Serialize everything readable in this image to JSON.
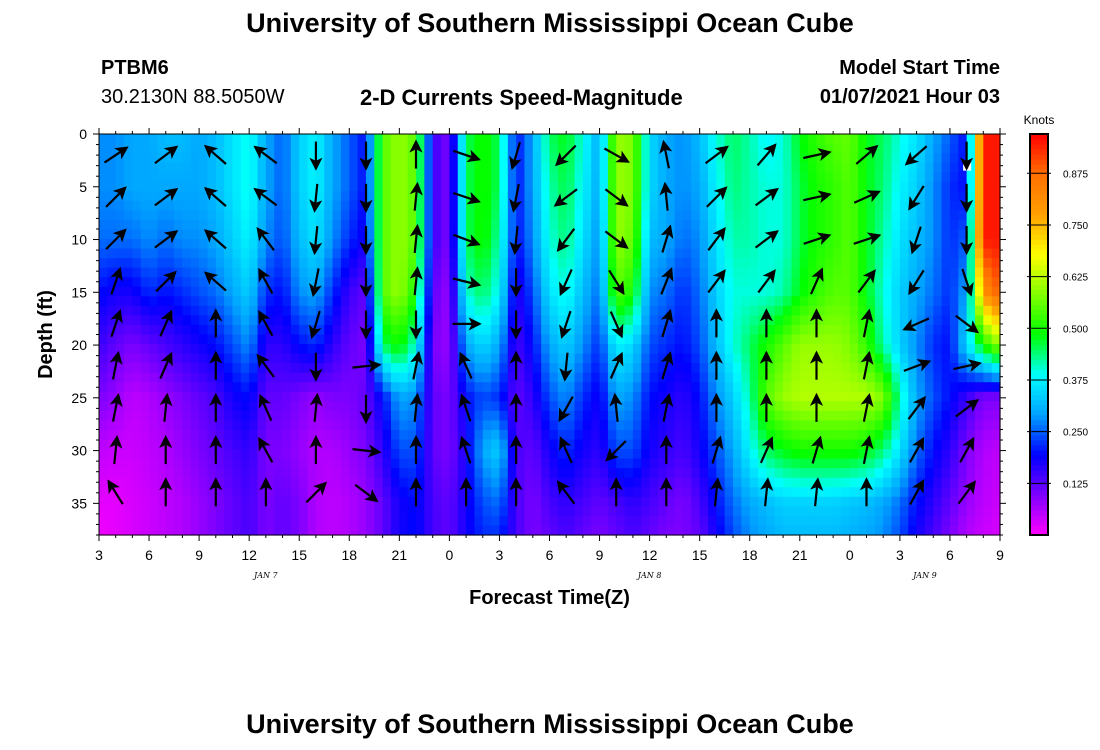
{
  "header": {
    "title": "University of Southern Mississippi Ocean Cube",
    "station": "PTBM6",
    "coords": "30.2130N 88.5050W",
    "subtitle": "2-D Currents Speed-Magnitude",
    "model_start_label": "Model Start Time",
    "model_start_value": "01/07/2021 Hour 03"
  },
  "footer": {
    "title": "University of Southern Mississippi Ocean Cube"
  },
  "chart_data": {
    "type": "heatmap",
    "title": "2-D Currents Speed-Magnitude",
    "xlabel": "Forecast Time(Z)",
    "ylabel": "Depth (ft)",
    "x_ticks": [
      "3",
      "6",
      "9",
      "12",
      "15",
      "18",
      "21",
      "0",
      "3",
      "6",
      "9",
      "12",
      "15",
      "18",
      "21",
      "0",
      "3",
      "6",
      "9"
    ],
    "x_hours": [
      0,
      3,
      6,
      9,
      12,
      15,
      18,
      21,
      24,
      27,
      30,
      33,
      36,
      39,
      42,
      45,
      48,
      51,
      54
    ],
    "date_labels": [
      {
        "label": "JAN 7",
        "hour": 10
      },
      {
        "label": "JAN 8",
        "hour": 33
      },
      {
        "label": "JAN 9",
        "hour": 49.5
      }
    ],
    "y_ticks": [
      "0",
      "5",
      "10",
      "15",
      "20",
      "25",
      "30",
      "35"
    ],
    "y_values": [
      0,
      5,
      10,
      15,
      20,
      25,
      30,
      35
    ],
    "ylim": [
      0,
      38
    ],
    "xlim": [
      0,
      54
    ],
    "colorbar": {
      "title": "Knots",
      "ticks": [
        "0.125",
        "0.250",
        "0.375",
        "0.500",
        "0.625",
        "0.750",
        "0.875"
      ],
      "tick_values": [
        0.125,
        0.25,
        0.375,
        0.5,
        0.625,
        0.75,
        0.875
      ],
      "range": [
        0,
        0.97
      ]
    },
    "colors": {
      "c0": "#ff00ff",
      "c1": "#8000ff",
      "c2": "#0000ff",
      "c3": "#00a0ff",
      "c4": "#00ffff",
      "c5": "#00ff00",
      "c6": "#80ff00",
      "c7": "#ffff00",
      "c8": "#ffa000",
      "c9": "#ff7000",
      "c10": "#ff0000"
    },
    "speed_grid": {
      "depths": [
        0,
        5,
        10,
        15,
        20,
        25,
        30,
        35,
        38
      ],
      "hours": [
        0,
        1,
        2,
        3,
        4,
        5,
        6,
        7,
        8,
        9,
        10,
        11,
        12,
        13,
        14,
        15,
        16,
        17,
        18,
        19,
        20,
        21,
        22,
        23,
        24,
        25,
        26,
        27,
        28,
        29,
        30,
        31,
        32,
        33,
        34,
        35,
        36,
        37,
        38,
        39,
        40,
        41,
        42,
        43,
        44,
        45,
        46,
        47,
        48,
        49,
        50,
        51,
        52,
        53,
        54
      ],
      "values": [
        [
          0.28,
          0.28,
          0.3,
          0.3,
          0.32,
          0.32,
          0.3,
          0.32,
          0.36,
          0.4,
          0.3,
          0.25,
          0.34,
          0.38,
          0.3,
          0.25,
          0.2,
          0.55,
          0.6,
          0.55,
          0.15,
          0.1,
          0.45,
          0.5,
          0.45,
          0.2,
          0.3,
          0.45,
          0.48,
          0.4,
          0.3,
          0.6,
          0.58,
          0.35,
          0.3,
          0.28,
          0.32,
          0.4,
          0.45,
          0.42,
          0.38,
          0.4,
          0.48,
          0.52,
          0.55,
          0.56,
          0.48,
          0.45,
          0.4,
          0.36,
          0.3,
          0.25,
          0.2,
          0.95,
          0.95
        ],
        [
          0.28,
          0.28,
          0.3,
          0.3,
          0.3,
          0.3,
          0.3,
          0.32,
          0.36,
          0.4,
          0.3,
          0.25,
          0.34,
          0.38,
          0.3,
          0.25,
          0.2,
          0.55,
          0.6,
          0.55,
          0.15,
          0.1,
          0.45,
          0.5,
          0.45,
          0.2,
          0.3,
          0.42,
          0.46,
          0.38,
          0.3,
          0.6,
          0.58,
          0.35,
          0.3,
          0.28,
          0.3,
          0.38,
          0.44,
          0.42,
          0.4,
          0.4,
          0.46,
          0.5,
          0.52,
          0.55,
          0.48,
          0.44,
          0.38,
          0.34,
          0.28,
          0.22,
          0.2,
          0.95,
          0.95
        ],
        [
          0.26,
          0.26,
          0.26,
          0.28,
          0.26,
          0.28,
          0.28,
          0.3,
          0.34,
          0.38,
          0.28,
          0.24,
          0.32,
          0.36,
          0.28,
          0.22,
          0.18,
          0.55,
          0.6,
          0.55,
          0.15,
          0.1,
          0.45,
          0.5,
          0.42,
          0.2,
          0.28,
          0.4,
          0.44,
          0.36,
          0.28,
          0.6,
          0.56,
          0.32,
          0.3,
          0.26,
          0.28,
          0.36,
          0.42,
          0.42,
          0.4,
          0.4,
          0.46,
          0.5,
          0.52,
          0.55,
          0.48,
          0.42,
          0.36,
          0.32,
          0.28,
          0.22,
          0.25,
          0.95,
          0.95
        ],
        [
          0.2,
          0.18,
          0.18,
          0.22,
          0.2,
          0.22,
          0.24,
          0.26,
          0.3,
          0.34,
          0.22,
          0.2,
          0.28,
          0.3,
          0.22,
          0.15,
          0.12,
          0.55,
          0.6,
          0.5,
          0.12,
          0.08,
          0.4,
          0.45,
          0.38,
          0.16,
          0.24,
          0.36,
          0.4,
          0.32,
          0.26,
          0.55,
          0.5,
          0.28,
          0.26,
          0.22,
          0.26,
          0.34,
          0.4,
          0.4,
          0.4,
          0.42,
          0.48,
          0.52,
          0.55,
          0.55,
          0.48,
          0.4,
          0.34,
          0.3,
          0.26,
          0.22,
          0.3,
          0.8,
          0.9
        ],
        [
          0.15,
          0.12,
          0.1,
          0.12,
          0.14,
          0.16,
          0.18,
          0.2,
          0.24,
          0.28,
          0.16,
          0.16,
          0.2,
          0.22,
          0.16,
          0.12,
          0.1,
          0.45,
          0.5,
          0.4,
          0.1,
          0.08,
          0.3,
          0.35,
          0.3,
          0.14,
          0.2,
          0.3,
          0.34,
          0.28,
          0.22,
          0.38,
          0.35,
          0.24,
          0.22,
          0.2,
          0.24,
          0.32,
          0.4,
          0.45,
          0.5,
          0.55,
          0.6,
          0.6,
          0.6,
          0.58,
          0.52,
          0.42,
          0.34,
          0.28,
          0.22,
          0.2,
          0.35,
          0.5,
          0.6
        ],
        [
          0.1,
          0.08,
          0.05,
          0.06,
          0.08,
          0.1,
          0.12,
          0.14,
          0.18,
          0.2,
          0.12,
          0.12,
          0.1,
          0.08,
          0.1,
          0.1,
          0.12,
          0.2,
          0.3,
          0.28,
          0.12,
          0.1,
          0.2,
          0.24,
          0.22,
          0.12,
          0.16,
          0.24,
          0.28,
          0.22,
          0.18,
          0.3,
          0.28,
          0.2,
          0.18,
          0.16,
          0.2,
          0.28,
          0.34,
          0.42,
          0.55,
          0.6,
          0.62,
          0.62,
          0.62,
          0.62,
          0.62,
          0.58,
          0.42,
          0.3,
          0.24,
          0.2,
          0.15,
          0.1,
          0.1
        ],
        [
          0.05,
          0.04,
          0.04,
          0.05,
          0.06,
          0.08,
          0.1,
          0.12,
          0.14,
          0.16,
          0.1,
          0.1,
          0.08,
          0.06,
          0.06,
          0.08,
          0.1,
          0.16,
          0.24,
          0.24,
          0.12,
          0.1,
          0.18,
          0.3,
          0.34,
          0.14,
          0.12,
          0.18,
          0.22,
          0.18,
          0.16,
          0.24,
          0.24,
          0.18,
          0.16,
          0.14,
          0.18,
          0.24,
          0.3,
          0.38,
          0.45,
          0.48,
          0.5,
          0.5,
          0.5,
          0.5,
          0.48,
          0.44,
          0.36,
          0.26,
          0.2,
          0.16,
          0.1,
          0.06,
          0.05
        ],
        [
          0.02,
          0.02,
          0.03,
          0.04,
          0.05,
          0.06,
          0.08,
          0.1,
          0.12,
          0.14,
          0.1,
          0.12,
          0.1,
          0.06,
          0.05,
          0.06,
          0.08,
          0.12,
          0.18,
          0.2,
          0.14,
          0.12,
          0.18,
          0.24,
          0.26,
          0.14,
          0.1,
          0.14,
          0.16,
          0.14,
          0.12,
          0.14,
          0.16,
          0.14,
          0.12,
          0.1,
          0.14,
          0.2,
          0.26,
          0.3,
          0.32,
          0.34,
          0.34,
          0.34,
          0.34,
          0.33,
          0.32,
          0.3,
          0.26,
          0.2,
          0.16,
          0.12,
          0.08,
          0.05,
          0.04
        ],
        [
          0.01,
          0.02,
          0.03,
          0.04,
          0.05,
          0.06,
          0.08,
          0.1,
          0.12,
          0.14,
          0.1,
          0.12,
          0.1,
          0.06,
          0.05,
          0.06,
          0.08,
          0.12,
          0.18,
          0.2,
          0.14,
          0.12,
          0.18,
          0.22,
          0.22,
          0.14,
          0.1,
          0.12,
          0.14,
          0.12,
          0.1,
          0.12,
          0.14,
          0.12,
          0.1,
          0.1,
          0.12,
          0.18,
          0.24,
          0.28,
          0.3,
          0.32,
          0.32,
          0.32,
          0.32,
          0.31,
          0.3,
          0.28,
          0.24,
          0.18,
          0.14,
          0.1,
          0.06,
          0.04,
          0.03
        ]
      ]
    },
    "vectors": {
      "hours": [
        1,
        4,
        7,
        10,
        13,
        16,
        19,
        22,
        25,
        28,
        31,
        34,
        37,
        40,
        43,
        46,
        49,
        52
      ],
      "depths": [
        2,
        6,
        10,
        14,
        18,
        22,
        26,
        30,
        34
      ],
      "u": [
        [
          0.9,
          0.8,
          -0.8,
          -0.8,
          0.0,
          0.0,
          0.0,
          0.9,
          -0.3,
          -0.7,
          0.9,
          -0.2,
          0.8,
          0.6,
          0.9,
          0.7,
          -0.8,
          0.0
        ],
        [
          0.7,
          0.8,
          -0.8,
          -0.8,
          -0.1,
          0.0,
          0.1,
          0.9,
          -0.2,
          -0.8,
          0.8,
          -0.1,
          0.7,
          0.8,
          0.9,
          0.9,
          -0.5,
          0.0
        ],
        [
          0.7,
          0.8,
          -0.8,
          -0.6,
          -0.1,
          0.0,
          0.1,
          0.8,
          -0.1,
          -0.6,
          0.8,
          0.3,
          0.6,
          0.8,
          0.9,
          0.9,
          -0.3,
          0.0
        ],
        [
          0.3,
          0.7,
          -0.8,
          -0.5,
          -0.2,
          0.0,
          0.1,
          0.8,
          0.0,
          -0.4,
          0.5,
          0.4,
          0.6,
          0.6,
          0.4,
          0.6,
          -0.5,
          0.3
        ],
        [
          0.3,
          0.4,
          0.0,
          -0.5,
          -0.3,
          0.0,
          0.0,
          0.7,
          0.0,
          -0.3,
          0.4,
          0.3,
          0.0,
          0.0,
          0.0,
          0.2,
          -0.9,
          0.8
        ],
        [
          0.2,
          0.4,
          0.0,
          -0.6,
          0.0,
          0.9,
          0.2,
          -0.4,
          0.0,
          -0.1,
          0.4,
          0.3,
          0.0,
          0.0,
          0.0,
          0.2,
          0.8,
          0.9
        ],
        [
          0.2,
          0.1,
          0.0,
          -0.4,
          0.1,
          0.0,
          0.1,
          -0.3,
          0.0,
          -0.5,
          -0.1,
          0.2,
          0.0,
          0.0,
          0.0,
          0.2,
          0.6,
          0.8
        ],
        [
          0.1,
          0.0,
          0.0,
          -0.5,
          0.0,
          0.9,
          0.0,
          -0.3,
          0.0,
          -0.4,
          -0.7,
          0.0,
          0.3,
          0.4,
          0.3,
          0.2,
          0.5,
          0.5
        ],
        [
          -0.5,
          0.0,
          0.0,
          0.0,
          0.7,
          0.8,
          0.0,
          0.0,
          0.0,
          -0.6,
          0.0,
          0.0,
          0.1,
          0.1,
          0.1,
          0.0,
          0.5,
          0.6
        ]
      ],
      "v": [
        [
          0.6,
          0.6,
          0.7,
          0.6,
          -1.0,
          -1.0,
          1.0,
          -0.3,
          -1.0,
          -0.7,
          -0.5,
          1.0,
          0.6,
          0.7,
          0.2,
          0.6,
          -0.7,
          -1.0
        ],
        [
          0.7,
          0.6,
          0.7,
          0.6,
          -1.0,
          -1.0,
          1.0,
          -0.3,
          -1.0,
          -0.6,
          -0.6,
          1.0,
          0.7,
          0.6,
          0.2,
          0.4,
          -0.8,
          -1.0
        ],
        [
          0.7,
          0.6,
          0.7,
          0.8,
          -1.0,
          -1.0,
          1.0,
          -0.3,
          -1.0,
          -0.8,
          -0.6,
          1.0,
          0.8,
          0.6,
          0.3,
          0.3,
          -0.9,
          -1.0
        ],
        [
          0.9,
          0.7,
          0.7,
          0.9,
          -1.0,
          -1.0,
          1.0,
          -0.2,
          -1.0,
          -0.9,
          -0.8,
          1.0,
          0.8,
          0.8,
          0.9,
          0.8,
          -0.8,
          -0.9
        ],
        [
          0.9,
          0.9,
          1.0,
          0.9,
          -1.0,
          -1.0,
          -1.0,
          0.0,
          -1.0,
          -0.9,
          -0.9,
          1.0,
          1.0,
          1.0,
          1.0,
          1.0,
          -0.4,
          -0.6
        ],
        [
          1.0,
          0.9,
          1.0,
          0.8,
          -1.0,
          0.1,
          1.0,
          0.9,
          1.0,
          -1.0,
          0.9,
          1.0,
          1.0,
          1.0,
          1.0,
          1.0,
          0.3,
          0.2
        ],
        [
          1.0,
          1.0,
          1.0,
          0.9,
          1.0,
          -1.0,
          1.0,
          0.9,
          1.0,
          -0.9,
          1.0,
          1.0,
          1.0,
          1.0,
          1.0,
          1.0,
          0.8,
          0.6
        ],
        [
          1.0,
          1.0,
          1.0,
          0.9,
          1.0,
          -0.1,
          1.0,
          0.9,
          1.0,
          0.9,
          -0.7,
          1.0,
          1.0,
          0.9,
          1.0,
          1.0,
          0.9,
          0.9
        ],
        [
          0.8,
          1.0,
          1.0,
          1.0,
          0.7,
          -0.6,
          1.0,
          1.0,
          1.0,
          0.8,
          1.0,
          1.0,
          1.0,
          1.0,
          1.0,
          1.0,
          0.9,
          0.8
        ]
      ]
    }
  }
}
